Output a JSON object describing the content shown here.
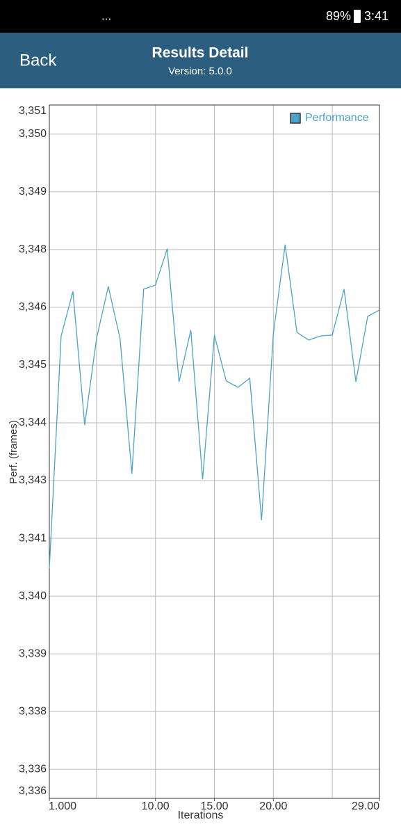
{
  "status_bar": {
    "more": "...",
    "battery": "89%",
    "time": "3:41"
  },
  "header": {
    "back": "Back",
    "title": "Results Detail",
    "subtitle": "Version: 5.0.0"
  },
  "chart_data": {
    "type": "line",
    "x_label": "Iterations",
    "y_label": "Perf. (frames)",
    "x": [
      1,
      2,
      3,
      4,
      5,
      6,
      7,
      8,
      9,
      10,
      11,
      12,
      13,
      14,
      15,
      16,
      17,
      18,
      19,
      20,
      21,
      22,
      23,
      24,
      25,
      26,
      27,
      28,
      29
    ],
    "series": [
      {
        "name": "Performance",
        "color": "#4aa3c8",
        "values": [
          3340.75,
          3345.86,
          3346.84,
          3343.9,
          3345.8,
          3346.95,
          3345.8,
          3342.83,
          3346.89,
          3346.98,
          3347.78,
          3344.85,
          3345.99,
          3342.71,
          3345.88,
          3344.87,
          3344.73,
          3344.93,
          3341.81,
          3345.91,
          3347.87,
          3345.94,
          3345.77,
          3345.86,
          3345.88,
          3346.89,
          3344.85,
          3346.29,
          3346.43
        ]
      }
    ],
    "xlim": [
      1,
      29
    ],
    "xticks": [
      {
        "value": 1,
        "label": "1.000"
      },
      {
        "value": 10,
        "label": "10.00"
      },
      {
        "value": 15,
        "label": "15.00"
      },
      {
        "value": 20,
        "label": "20.00"
      },
      {
        "value": 29,
        "label": "29.00"
      }
    ],
    "xgrid": [
      5,
      10,
      15,
      20,
      25
    ],
    "ylim": [
      3335.69,
      3350.94
    ],
    "yticks": [
      {
        "value": 3350.94,
        "label": "3,351"
      },
      {
        "value": 3350.3,
        "label": "3,350"
      },
      {
        "value": 3349.03,
        "label": "3,349"
      },
      {
        "value": 3347.76,
        "label": "3,348"
      },
      {
        "value": 3346.49,
        "label": "3,346"
      },
      {
        "value": 3345.22,
        "label": "3,345"
      },
      {
        "value": 3343.95,
        "label": "3,344"
      },
      {
        "value": 3342.68,
        "label": "3,343"
      },
      {
        "value": 3341.41,
        "label": "3,341"
      },
      {
        "value": 3340.14,
        "label": "3,340"
      },
      {
        "value": 3338.87,
        "label": "3,339"
      },
      {
        "value": 3337.6,
        "label": "3,338"
      },
      {
        "value": 3336.33,
        "label": "3,336"
      },
      {
        "value": 3335.69,
        "label": "3,336"
      }
    ],
    "grid": true,
    "legend": "top-right"
  }
}
